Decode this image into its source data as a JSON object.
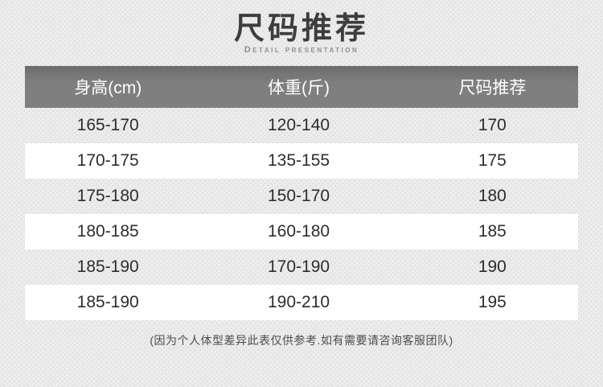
{
  "chart_data": {
    "type": "table",
    "title": "尺码推荐",
    "subtitle": "Detail presentation",
    "columns": [
      "身高(cm)",
      "体重(斤)",
      "尺码推荐"
    ],
    "rows": [
      [
        "165-170",
        "120-140",
        "170"
      ],
      [
        "170-175",
        "135-155",
        "175"
      ],
      [
        "175-180",
        "150-170",
        "180"
      ],
      [
        "180-185",
        "160-180",
        "185"
      ],
      [
        "185-190",
        "170-190",
        "190"
      ],
      [
        "185-190",
        "190-210",
        "195"
      ]
    ],
    "note": "(因为个人体型差异此表仅供参考.如有需要请咨询客服团队)",
    "layout_hints": "header row gray, body rows alternate background-pattern/white, all cells center-aligned"
  },
  "colors": {
    "page_bg": "#ececec",
    "pattern_dot": "#dddddd",
    "title_text": "#3d3d3d",
    "subtitle_text": "#8e8e8e",
    "header_bg": "#7f7f7f",
    "header_bg_top": "#6c6c6c",
    "header_text": "#ffffff",
    "cell_text": "#2d2d2d",
    "row_alt_bg": "#ffffff",
    "note_text": "#4c4c4c"
  }
}
